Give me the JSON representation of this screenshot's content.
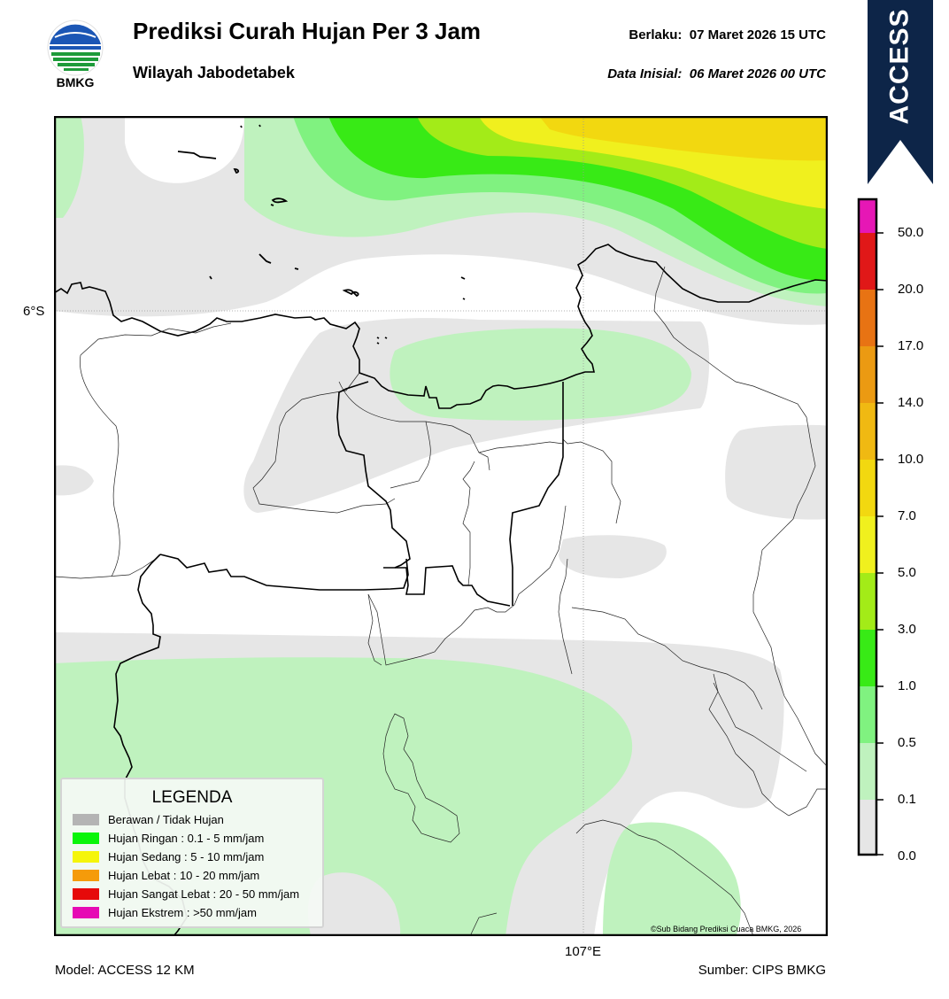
{
  "header": {
    "title": "Prediksi Curah Hujan Per 3 Jam",
    "subtitle": "Wilayah Jabodetabek",
    "valid_label": "Berlaku:",
    "valid_value": "07 Maret 2026 15 UTC",
    "init_label": "Data Inisial:",
    "init_value": "06 Maret 2026 00 UTC"
  },
  "logo": {
    "text": "BMKG",
    "icon": "bmkg-logo"
  },
  "ribbon": {
    "text": "ACCESS",
    "color": "#0d2548"
  },
  "map": {
    "lat_label": "6°S",
    "lon_label": "107°E",
    "copyright": "©Sub Bidang Prediksi Cuaca BMKG, 2026"
  },
  "legend": {
    "title": "LEGENDA",
    "items": [
      {
        "label": "Berawan / Tidak Hujan",
        "color": "#b4b4b4"
      },
      {
        "label": "Hujan Ringan : 0.1 - 5 mm/jam",
        "color": "#0af50a"
      },
      {
        "label": "Hujan Sedang : 5 - 10 mm/jam",
        "color": "#f5f50a"
      },
      {
        "label": "Hujan Lebat : 10 - 20 mm/jam",
        "color": "#f59b0a"
      },
      {
        "label": "Hujan Sangat Lebat : 20 - 50 mm/jam",
        "color": "#e60a0a"
      },
      {
        "label": "Hujan Ekstrem : >50 mm/jam",
        "color": "#e60ab4"
      }
    ]
  },
  "colorbar": {
    "ticks": [
      "0.0",
      "0.1",
      "0.5",
      "1.0",
      "3.0",
      "5.0",
      "7.0",
      "10.0",
      "14.0",
      "17.0",
      "20.0",
      "50.0"
    ],
    "colors": [
      "#e6e6e6",
      "#bff2be",
      "#80f280",
      "#38ea16",
      "#a3eb18",
      "#f0f01e",
      "#f2d810",
      "#f0b912",
      "#eb9a12",
      "#e87313",
      "#e01818",
      "#e617b5"
    ]
  },
  "footer": {
    "model": "Model: ACCESS 12 KM",
    "source": "Sumber: CIPS BMKG"
  }
}
